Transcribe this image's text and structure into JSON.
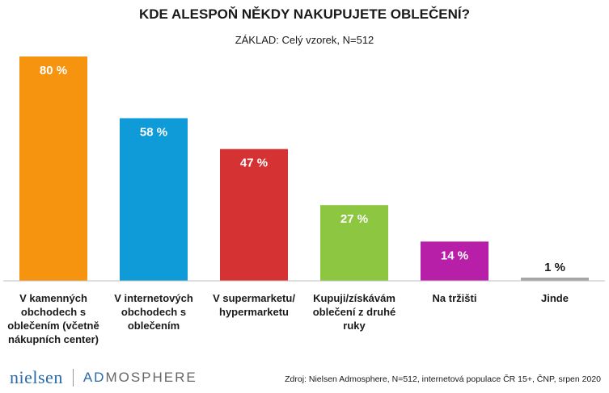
{
  "chart_data": {
    "type": "bar",
    "title": "KDE ALESPOŇ NĚKDY NAKUPUJETE OBLEČENÍ?",
    "subtitle": "ZÁKLAD: Celý vzorek, N=512",
    "categories": [
      "V kamenných obchodech s oblečením (včetně nákupních center)",
      "V internetových obchodech s oblečením",
      "V supermarketu/ hypermarketu",
      "Kupuji/získávám oblečení z druhé ruky",
      "Na tržišti",
      "Jinde"
    ],
    "category_lines": [
      [
        "V kamenných",
        "obchodech s",
        "oblečením (včetně",
        "nákupních center)"
      ],
      [
        "V internetových",
        "obchodech s",
        "oblečením"
      ],
      [
        "V supermarketu/",
        "hypermarketu"
      ],
      [
        "Kupuji/získávám",
        "oblečení z druhé",
        "ruky"
      ],
      [
        "Na tržišti"
      ],
      [
        "Jinde"
      ]
    ],
    "values": [
      80,
      58,
      47,
      27,
      14,
      1
    ],
    "value_labels": [
      "80 %",
      "58 %",
      "47 %",
      "27 %",
      "14 %",
      "1 %"
    ],
    "colors": [
      "#f7940f",
      "#0e9bd8",
      "#d53333",
      "#8dc641",
      "#b71fa8",
      "#a6a6a6"
    ],
    "ylim": [
      0,
      80
    ],
    "grid": false,
    "legend": "none"
  },
  "footer": {
    "logo_left": "nielsen",
    "logo_right_ad": "AD",
    "logo_right_rest": "MOSPHERE",
    "source": "Zdroj: Nielsen Admosphere, N=512, internetová populace ČR 15+, ČNP, srpen 2020"
  }
}
